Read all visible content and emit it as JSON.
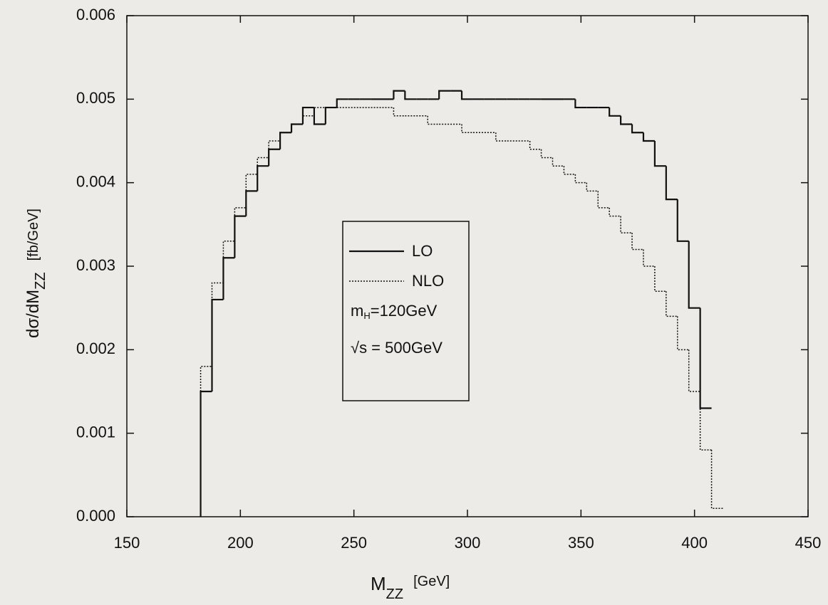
{
  "chart_data": {
    "type": "histogram",
    "xlabel": {
      "text": "M",
      "sub": "ZZ",
      "unit": "[GeV]"
    },
    "ylabel": {
      "text": "dσ/dM",
      "sub": "ZZ",
      "unit": "[fb/GeV]"
    },
    "bins": [
      182.5,
      187.5,
      192.5,
      197.5,
      202.5,
      207.5,
      212.5,
      217.5,
      222.5,
      227.5,
      232.5,
      237.5,
      242.5,
      247.5,
      252.5,
      257.5,
      262.5,
      267.5,
      272.5,
      277.5,
      282.5,
      287.5,
      292.5,
      297.5,
      302.5,
      307.5,
      312.5,
      317.5,
      322.5,
      327.5,
      332.5,
      337.5,
      342.5,
      347.5,
      352.5,
      357.5,
      362.5,
      367.5,
      372.5,
      377.5,
      382.5,
      387.5,
      392.5,
      397.5,
      402.5,
      407.5,
      412.5
    ],
    "series": [
      {
        "name": "LO",
        "color": "#111111",
        "style": "solid",
        "values": [
          0.0015,
          0.0026,
          0.0031,
          0.0036,
          0.0039,
          0.0042,
          0.0044,
          0.0046,
          0.0047,
          0.0049,
          0.0047,
          0.0049,
          0.005,
          0.005,
          0.005,
          0.005,
          0.005,
          0.0051,
          0.005,
          0.005,
          0.005,
          0.0051,
          0.0051,
          0.005,
          0.005,
          0.005,
          0.005,
          0.005,
          0.005,
          0.005,
          0.005,
          0.005,
          0.005,
          0.0049,
          0.0049,
          0.0049,
          0.0048,
          0.0047,
          0.0046,
          0.0045,
          0.0042,
          0.0038,
          0.0033,
          0.0025,
          0.0013,
          null
        ]
      },
      {
        "name": "NLO",
        "color": "#111111",
        "style": "dotted",
        "values": [
          0.0018,
          0.0028,
          0.0033,
          0.0037,
          0.0041,
          0.0043,
          0.0045,
          0.0046,
          0.0047,
          0.0048,
          0.0049,
          0.0049,
          0.0049,
          0.0049,
          0.0049,
          0.0049,
          0.0049,
          0.0048,
          0.0048,
          0.0048,
          0.0047,
          0.0047,
          0.0047,
          0.0046,
          0.0046,
          0.0046,
          0.0045,
          0.0045,
          0.0045,
          0.0044,
          0.0043,
          0.0042,
          0.0041,
          0.004,
          0.0039,
          0.0037,
          0.0036,
          0.0034,
          0.0032,
          0.003,
          0.0027,
          0.0024,
          0.002,
          0.0015,
          0.0008,
          0.0001
        ]
      }
    ],
    "annotations": [
      {
        "text": "m",
        "sub": "H",
        "rest": "=120GeV"
      },
      {
        "text": "√s = 500GeV"
      }
    ],
    "xlim": [
      150,
      450
    ],
    "xticks": [
      150,
      200,
      250,
      300,
      350,
      400,
      450
    ],
    "ylim": [
      0,
      0.006
    ],
    "yticks": [
      {
        "value": 0,
        "label": "0.000"
      },
      0.001,
      0.002,
      0.003,
      0.004,
      0.005,
      0.006
    ]
  }
}
